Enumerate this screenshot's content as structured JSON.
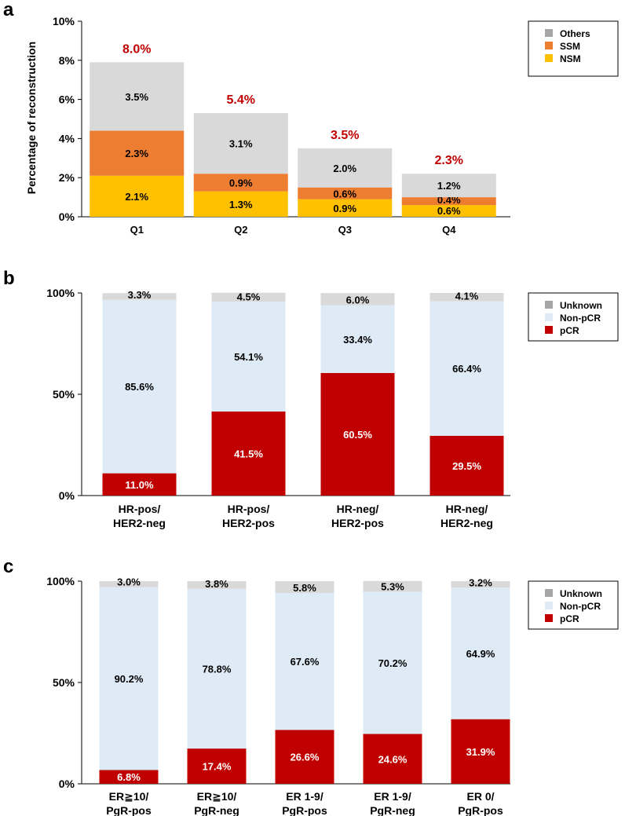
{
  "panels": [
    "a",
    "b",
    "c"
  ],
  "chart_data": [
    {
      "panel": "a",
      "type": "bar",
      "stacked": true,
      "title": "",
      "xlabel": "",
      "ylabel": "Percentage of reconstruction",
      "ylim": [
        0,
        10
      ],
      "yticks": [
        "0%",
        "2%",
        "4%",
        "6%",
        "8%",
        "10%"
      ],
      "categories": [
        "Q1",
        "Q2",
        "Q3",
        "Q4"
      ],
      "series": [
        {
          "name": "NSM",
          "color": "#FFC000",
          "values": [
            2.1,
            1.3,
            0.9,
            0.6
          ],
          "labels": [
            "2.1%",
            "1.3%",
            "0.9%",
            "0.6%"
          ]
        },
        {
          "name": "SSM",
          "color": "#ED7D31",
          "values": [
            2.3,
            0.9,
            0.6,
            0.4
          ],
          "labels": [
            "2.3%",
            "0.9%",
            "0.6%",
            "0.4%"
          ]
        },
        {
          "name": "Others",
          "color": "#D9D9D9",
          "values": [
            3.5,
            3.1,
            2.0,
            1.2
          ],
          "labels": [
            "3.5%",
            "3.1%",
            "2.0%",
            "1.2%"
          ]
        }
      ],
      "totals": [
        8.0,
        5.4,
        3.5,
        2.3
      ],
      "total_labels": [
        "8.0%",
        "5.4%",
        "3.5%",
        "2.3%"
      ],
      "total_color": "#C00000",
      "legend": [
        "Others",
        "SSM",
        "NSM"
      ],
      "legend_position": "top-right"
    },
    {
      "panel": "b",
      "type": "bar",
      "stacked": true,
      "title": "",
      "xlabel": "",
      "ylabel": "",
      "ylim": [
        0,
        100
      ],
      "yticks": [
        "0%",
        "50%",
        "100%"
      ],
      "categories": [
        [
          "HR-pos/",
          "HER2-neg"
        ],
        [
          "HR-pos/",
          "HER2-pos"
        ],
        [
          "HR-neg/",
          "HER2-pos"
        ],
        [
          "HR-neg/",
          "HER2-neg"
        ]
      ],
      "series": [
        {
          "name": "pCR",
          "color": "#C00000",
          "values": [
            11.0,
            41.5,
            60.5,
            29.5
          ],
          "labels": [
            "11.0%",
            "41.5%",
            "60.5%",
            "29.5%"
          ]
        },
        {
          "name": "Non-pCR",
          "color": "#DEEBF7",
          "values": [
            85.6,
            54.1,
            33.4,
            66.4
          ],
          "labels": [
            "85.6%",
            "54.1%",
            "33.4%",
            "66.4%"
          ]
        },
        {
          "name": "Unknown",
          "color": "#D9D9D9",
          "values": [
            3.3,
            4.5,
            6.0,
            4.1
          ],
          "labels": [
            "3.3%",
            "4.5%",
            "6.0%",
            "4.1%"
          ]
        }
      ],
      "legend": [
        "Unknown",
        "Non-pCR",
        "pCR"
      ],
      "legend_swatches": [
        "#A6A6A6",
        "#DEEBF7",
        "#C00000"
      ],
      "legend_position": "top-right"
    },
    {
      "panel": "c",
      "type": "bar",
      "stacked": true,
      "title": "",
      "xlabel": "",
      "ylabel": "",
      "ylim": [
        0,
        100
      ],
      "yticks": [
        "0%",
        "50%",
        "100%"
      ],
      "categories": [
        [
          "ER≧10/",
          "PgR-pos"
        ],
        [
          "ER≧10/",
          "PgR-neg"
        ],
        [
          "ER 1-9/",
          "PgR-pos"
        ],
        [
          "ER 1-9/",
          "PgR-neg"
        ],
        [
          "ER 0/",
          "PgR-pos"
        ]
      ],
      "series": [
        {
          "name": "pCR",
          "color": "#C00000",
          "values": [
            6.8,
            17.4,
            26.6,
            24.6,
            31.9
          ],
          "labels": [
            "6.8%",
            "17.4%",
            "26.6%",
            "24.6%",
            "31.9%"
          ]
        },
        {
          "name": "Non-pCR",
          "color": "#DEEBF7",
          "values": [
            90.2,
            78.8,
            67.6,
            70.2,
            64.9
          ],
          "labels": [
            "90.2%",
            "78.8%",
            "67.6%",
            "70.2%",
            "64.9%"
          ]
        },
        {
          "name": "Unknown",
          "color": "#D9D9D9",
          "values": [
            3.0,
            3.8,
            5.8,
            5.3,
            3.2
          ],
          "labels": [
            "3.0%",
            "3.8%",
            "5.8%",
            "5.3%",
            "3.2%"
          ]
        }
      ],
      "legend": [
        "Unknown",
        "Non-pCR",
        "pCR"
      ],
      "legend_swatches": [
        "#A6A6A6",
        "#DEEBF7",
        "#C00000"
      ],
      "legend_position": "top-right"
    }
  ]
}
